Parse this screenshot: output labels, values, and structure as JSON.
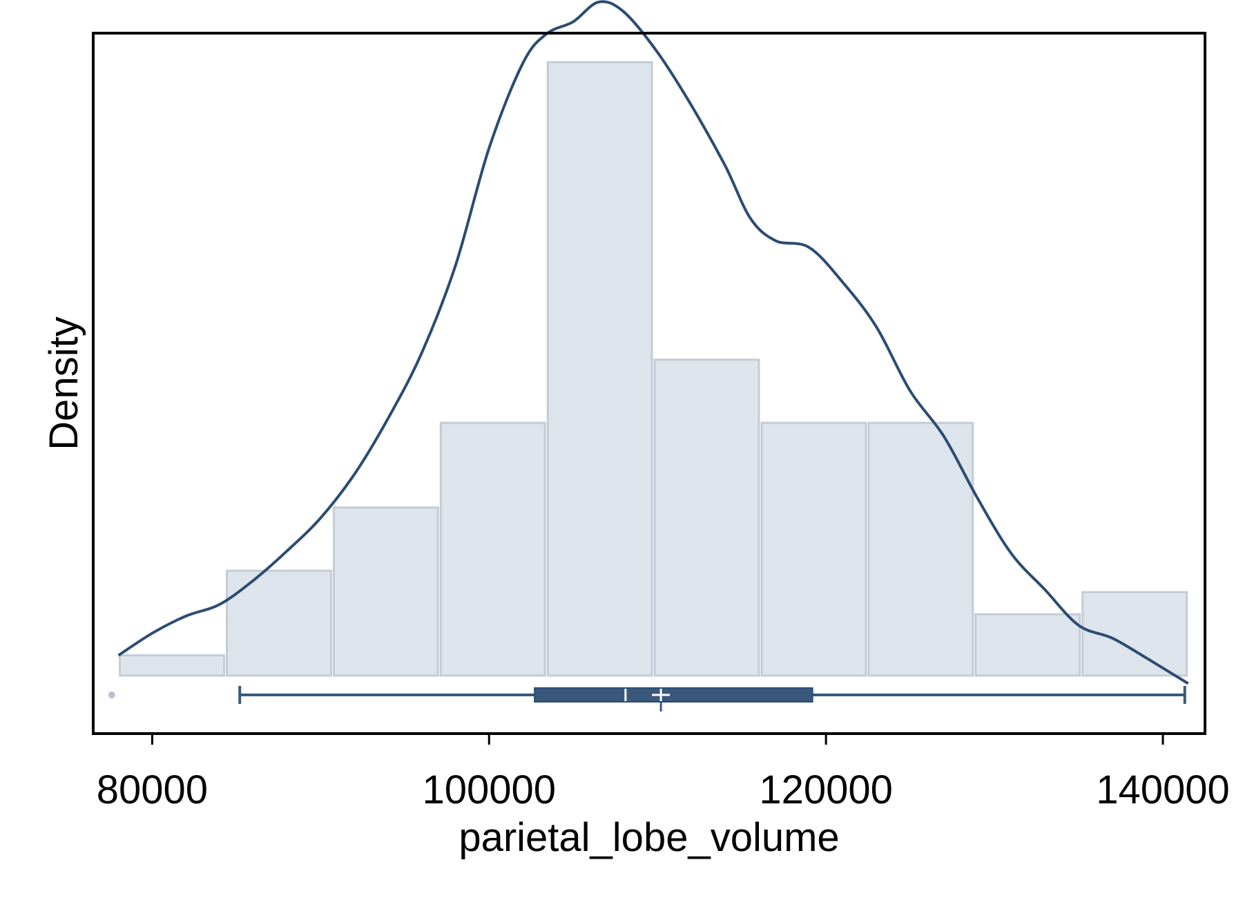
{
  "chart_data": {
    "type": "histogram",
    "xlabel": "parietal_lobe_volume",
    "ylabel": "Density",
    "xlim": [
      76500,
      142500
    ],
    "x_ticks": [
      80000,
      100000,
      120000,
      140000
    ],
    "x_tick_labels": [
      "80000",
      "100000",
      "120000",
      "140000"
    ],
    "y_ticks_shown": false,
    "histogram": {
      "bin_edges": [
        78000,
        84350,
        90700,
        97050,
        103400,
        109750,
        116100,
        122450,
        128800,
        135150,
        141500
      ],
      "relative_heights": [
        0.033,
        0.171,
        0.274,
        0.412,
        1.0,
        0.515,
        0.412,
        0.412,
        0.1,
        0.136
      ]
    },
    "kde": {
      "x": [
        78000,
        80000,
        82000,
        84000,
        86000,
        88000,
        90000,
        92000,
        94000,
        96000,
        98000,
        100000,
        102000,
        103400,
        105000,
        106500,
        108000,
        110000,
        112000,
        114000,
        115500,
        117000,
        119000,
        121000,
        123000,
        125000,
        127000,
        129000,
        131000,
        133000,
        135000,
        137000,
        139000,
        141500
      ],
      "relative_density": [
        0.033,
        0.069,
        0.097,
        0.116,
        0.155,
        0.203,
        0.257,
        0.328,
        0.419,
        0.526,
        0.668,
        0.86,
        0.998,
        1.046,
        1.066,
        1.098,
        1.082,
        1.016,
        0.93,
        0.832,
        0.746,
        0.709,
        0.698,
        0.641,
        0.568,
        0.464,
        0.39,
        0.289,
        0.199,
        0.14,
        0.082,
        0.061,
        0.029,
        -0.013
      ]
    },
    "boxplot": {
      "whisker_low": 85200,
      "q1": 102700,
      "median": 108100,
      "mean": 110200,
      "q3": 119200,
      "whisker_high": 141300,
      "outliers": [
        77600
      ]
    },
    "colors": {
      "bar_fill": "#dde4eb",
      "bar_edge": "#c3ccd6",
      "kde_line": "#2b4c72",
      "box": "#39587c",
      "outlier": "#b8c2ce",
      "frame": "#000000"
    }
  }
}
